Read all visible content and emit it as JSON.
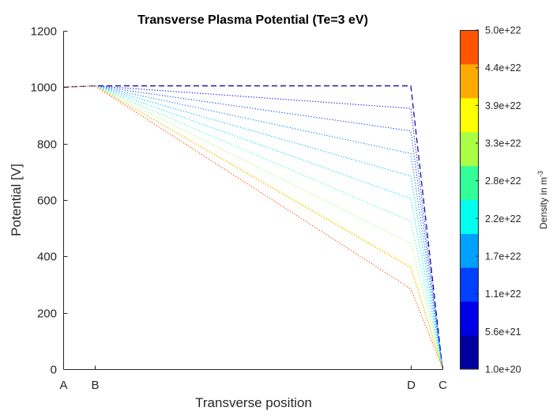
{
  "chart_data": {
    "type": "line",
    "title": "Transverse Plasma Potential (Te=3 eV)",
    "xlabel": "Transverse position",
    "ylabel": "Potential [V]",
    "ylim": [
      0,
      1200
    ],
    "y_ticks": [
      0,
      200,
      400,
      600,
      800,
      1000,
      1200
    ],
    "x_ticks": [
      {
        "label": "A",
        "pos": 0
      },
      {
        "label": "B",
        "pos": 1
      },
      {
        "label": "D",
        "pos": 11
      },
      {
        "label": "C",
        "pos": 12
      }
    ],
    "xlim": [
      0,
      12
    ],
    "grid": false,
    "colorbar": {
      "title": "Density in m",
      "title_superscript": "-3",
      "tick_labels": [
        "1.0e+20",
        "5.6e+21",
        "1.1e+22",
        "1.7e+22",
        "2.2e+22",
        "2.8e+22",
        "3.3e+22",
        "3.9e+22",
        "4.4e+22",
        "5.0e+22"
      ],
      "colors": [
        "#00009f",
        "#0000e6",
        "#0040ff",
        "#00a0ff",
        "#00ffee",
        "#33ff99",
        "#aaff44",
        "#ffff00",
        "#ffaa00",
        "#ff5500"
      ]
    },
    "series": [
      {
        "style": "dashed",
        "color": "#0000a8",
        "x": [
          0,
          1,
          11,
          12
        ],
        "y": [
          1000,
          1005,
          1005,
          5
        ]
      },
      {
        "style": "dotted",
        "color": "#0000e6",
        "x": [
          0,
          1,
          11,
          12
        ],
        "y": [
          1000,
          1005,
          925,
          5
        ]
      },
      {
        "style": "dotted",
        "color": "#0040ff",
        "x": [
          0,
          1,
          11,
          12
        ],
        "y": [
          1000,
          1005,
          845,
          5
        ]
      },
      {
        "style": "dotted",
        "color": "#0080ff",
        "x": [
          0,
          1,
          11,
          12
        ],
        "y": [
          1000,
          1005,
          765,
          5
        ]
      },
      {
        "style": "dotted",
        "color": "#00b8ff",
        "x": [
          0,
          1,
          11,
          12
        ],
        "y": [
          1000,
          1005,
          685,
          5
        ]
      },
      {
        "style": "dotted",
        "color": "#00e6f0",
        "x": [
          0,
          1,
          11,
          12
        ],
        "y": [
          1000,
          1005,
          605,
          5
        ]
      },
      {
        "style": "dotted",
        "color": "#40ffb0",
        "x": [
          0,
          1,
          11,
          12
        ],
        "y": [
          1000,
          1005,
          525,
          5
        ]
      },
      {
        "style": "dotted",
        "color": "#a0ff60",
        "x": [
          0,
          1,
          11,
          12
        ],
        "y": [
          1000,
          1005,
          445,
          5
        ]
      },
      {
        "style": "dotted",
        "color": "#e8ff10",
        "x": [
          0,
          1,
          11,
          12
        ],
        "y": [
          1000,
          1005,
          365,
          5
        ]
      },
      {
        "style": "dotted",
        "color": "#ffa000",
        "x": [
          0,
          1,
          11,
          12
        ],
        "y": [
          1000,
          1005,
          360,
          5
        ]
      },
      {
        "style": "dotted",
        "color": "#ff4000",
        "x": [
          0,
          1,
          11,
          12
        ],
        "y": [
          1000,
          1005,
          285,
          5
        ]
      }
    ]
  }
}
